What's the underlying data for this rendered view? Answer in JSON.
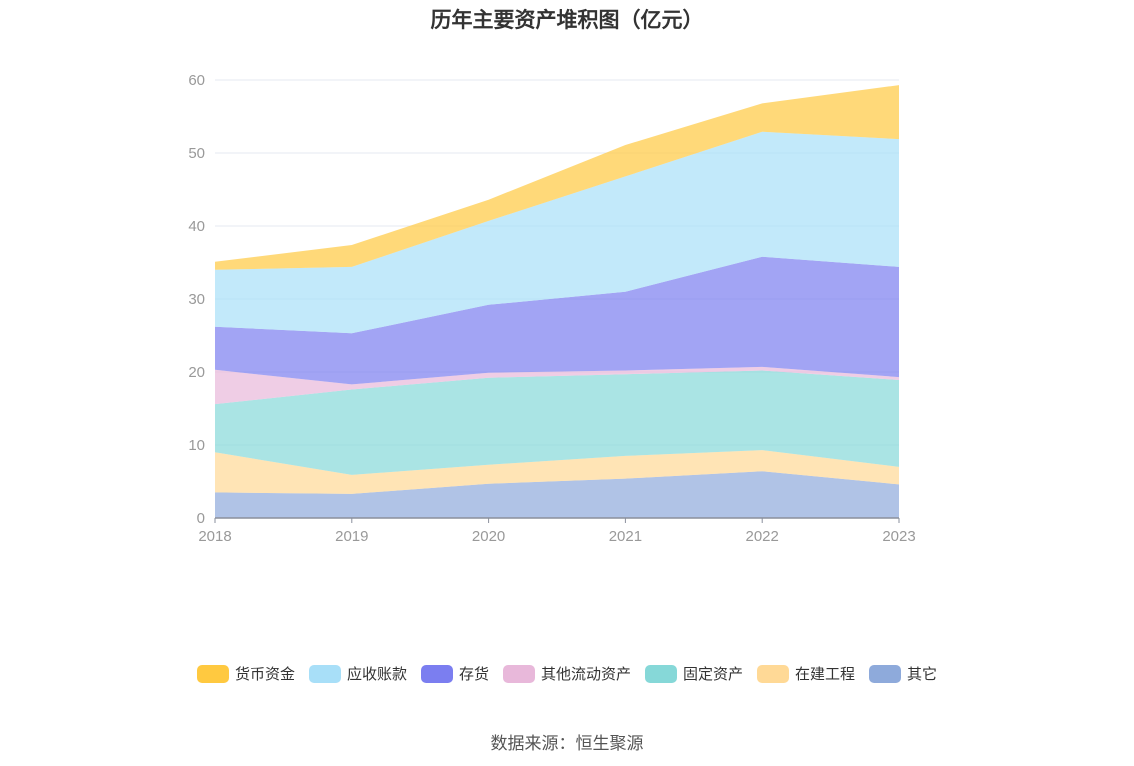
{
  "chart_data": {
    "type": "area",
    "stacked": true,
    "title": "历年主要资产堆积图（亿元）",
    "x": [
      "2018",
      "2019",
      "2020",
      "2021",
      "2022",
      "2023"
    ],
    "y_ticks": [
      "0",
      "10",
      "20",
      "30",
      "40",
      "50",
      "60"
    ],
    "ylim": [
      0,
      60
    ],
    "grid": true,
    "legend_position": "bottom",
    "series": [
      {
        "name": "其它",
        "color": "#8eaadb",
        "values": [
          3.5,
          3.3,
          4.7,
          5.4,
          6.4,
          4.6
        ]
      },
      {
        "name": "在建工程",
        "color": "#ffd996",
        "values": [
          5.5,
          2.6,
          2.6,
          3.1,
          2.9,
          2.4
        ]
      },
      {
        "name": "固定资产",
        "color": "#86d8d8",
        "values": [
          6.6,
          11.7,
          11.9,
          11.2,
          10.9,
          11.9
        ]
      },
      {
        "name": "其他流动资产",
        "color": "#e8b8da",
        "values": [
          4.7,
          0.7,
          0.7,
          0.5,
          0.5,
          0.4
        ]
      },
      {
        "name": "存货",
        "color": "#7b7ef0",
        "values": [
          5.9,
          7.0,
          9.3,
          10.8,
          15.1,
          15.1
        ]
      },
      {
        "name": "应收账款",
        "color": "#a8dff8",
        "values": [
          7.8,
          9.1,
          11.5,
          15.8,
          17.1,
          17.5
        ]
      },
      {
        "name": "货币资金",
        "color": "#ffc940",
        "values": [
          1.1,
          3.0,
          2.9,
          4.3,
          3.9,
          7.4
        ]
      }
    ],
    "legend_order": [
      "货币资金",
      "应收账款",
      "存货",
      "其他流动资产",
      "固定资产",
      "在建工程",
      "其它"
    ],
    "source": "数据来源：恒生聚源"
  }
}
